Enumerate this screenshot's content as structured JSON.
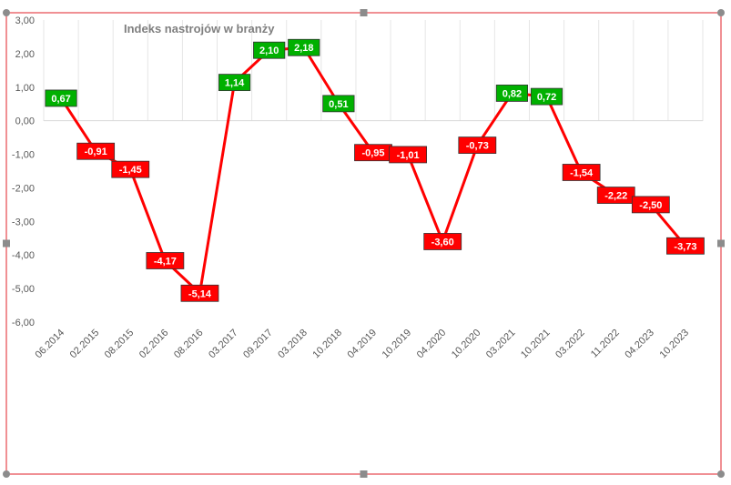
{
  "chart_data": {
    "type": "line",
    "title": "Indeks nastrojów w branży",
    "xlabel": "",
    "ylabel": "",
    "ylim": [
      -6,
      3
    ],
    "ytick_labels": [
      "3,00",
      "2,00",
      "1,00",
      "0,00",
      "-1,00",
      "-2,00",
      "-3,00",
      "-4,00",
      "-5,00",
      "-6,00"
    ],
    "x_tick_labels": [
      "06.2014",
      "02.2015",
      "08.2015",
      "02.2016",
      "08.2016",
      "03.2017",
      "09.2017",
      "03.2018",
      "10.2018",
      "04.2019",
      "10.2019",
      "04.2020",
      "10.2020",
      "03.2021",
      "10.2021",
      "03.2022",
      "11.2022",
      "04.2023",
      "10.2023"
    ],
    "grid": "vertical",
    "legend": "none",
    "series": [
      {
        "color": "#ff0000",
        "values": [
          0.67,
          -0.91,
          -1.45,
          -4.17,
          -5.14,
          1.14,
          2.1,
          2.18,
          0.51,
          -0.95,
          -1.01,
          -3.6,
          -0.73,
          0.82,
          0.72,
          -1.54,
          -2.22,
          -2.5,
          -3.73
        ],
        "labels": [
          "0,67",
          "-0,91",
          "-1,45",
          "-4,17",
          "-5,14",
          "1,14",
          "2,10",
          "2,18",
          "0,51",
          "-0,95",
          "-1,01",
          "-3,60",
          "-0,73",
          "0,82",
          "0,72",
          "-1,54",
          "-2,22",
          "-2,50",
          "-3,73"
        ]
      }
    ],
    "colors": {
      "positive_label_bg": "#00b000",
      "negative_label_bg": "#ff0000",
      "line": "#ff0000",
      "selection_border": "#e0202a"
    }
  }
}
